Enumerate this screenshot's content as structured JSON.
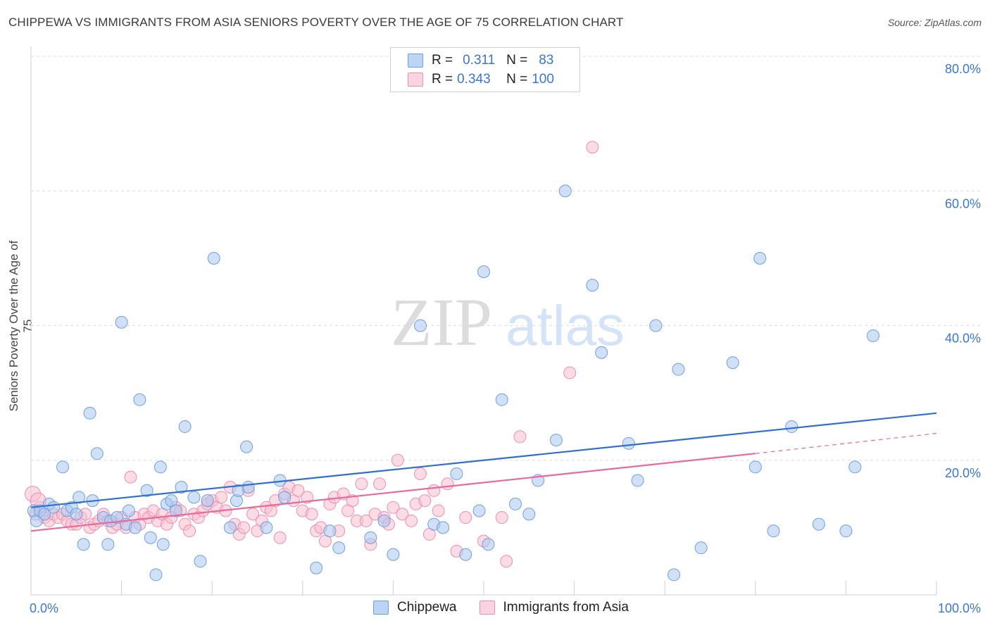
{
  "title": "CHIPPEWA VS IMMIGRANTS FROM ASIA SENIORS POVERTY OVER THE AGE OF 75 CORRELATION CHART",
  "source": "Source: ZipAtlas.com",
  "watermark": {
    "zip": "ZIP",
    "atlas": "atlas"
  },
  "legend": {
    "r_label": "R =",
    "n_label": "N =",
    "rows": [
      {
        "name": "Chippewa",
        "r": "0.311",
        "n": "83"
      },
      {
        "name": "Immigrants from Asia",
        "r": "0.343",
        "n": "100"
      }
    ]
  },
  "colors": {
    "chippewa_fill": "#a9c8f0",
    "chippewa_stroke": "#6f9fdc",
    "chippewa_line": "#2f6fd0",
    "asia_fill": "#f7bfd0",
    "asia_stroke": "#ee8fb0",
    "asia_line": "#e8699a",
    "tick_text": "#3b76d0",
    "grid": "#dedede"
  },
  "chart_data": {
    "type": "scatter",
    "title": "CHIPPEWA VS IMMIGRANTS FROM ASIA SENIORS POVERTY OVER THE AGE OF 75 CORRELATION CHART",
    "xlabel": "",
    "ylabel": "Seniors Poverty Over the Age of 75",
    "xlim": [
      0,
      100
    ],
    "ylim": [
      0,
      80
    ],
    "x_tick_labels": [
      "0.0%",
      "100.0%"
    ],
    "y_ticks": [
      20,
      40,
      60,
      80
    ],
    "y_tick_labels": [
      "20.0%",
      "40.0%",
      "60.0%",
      "80.0%"
    ],
    "grid": true,
    "legend_position": "top-center",
    "series": [
      {
        "name": "Chippewa",
        "trend": {
          "x0": 0,
          "y0": 13.0,
          "x1": 100,
          "y1": 27.0
        },
        "points": [
          [
            0.3,
            12.5
          ],
          [
            0.6,
            11.0
          ],
          [
            1.0,
            12.5
          ],
          [
            1.5,
            12.0
          ],
          [
            2.0,
            13.5
          ],
          [
            2.5,
            13.0
          ],
          [
            3.5,
            19.0
          ],
          [
            4.0,
            12.5
          ],
          [
            4.5,
            13.0
          ],
          [
            5.0,
            12.0
          ],
          [
            5.3,
            14.5
          ],
          [
            5.8,
            7.5
          ],
          [
            6.5,
            27.0
          ],
          [
            6.8,
            14.0
          ],
          [
            7.3,
            21.0
          ],
          [
            8.0,
            11.5
          ],
          [
            8.5,
            7.5
          ],
          [
            8.8,
            11.0
          ],
          [
            9.5,
            11.5
          ],
          [
            10.0,
            40.5
          ],
          [
            10.5,
            10.5
          ],
          [
            10.8,
            12.5
          ],
          [
            11.5,
            10.0
          ],
          [
            12.0,
            29.0
          ],
          [
            12.8,
            15.5
          ],
          [
            13.2,
            8.5
          ],
          [
            13.8,
            3.0
          ],
          [
            14.3,
            19.0
          ],
          [
            14.6,
            7.5
          ],
          [
            15.0,
            13.5
          ],
          [
            15.5,
            14.0
          ],
          [
            16.0,
            12.5
          ],
          [
            16.6,
            16.0
          ],
          [
            17.0,
            25.0
          ],
          [
            18.0,
            14.5
          ],
          [
            18.7,
            5.0
          ],
          [
            19.5,
            14.0
          ],
          [
            20.2,
            50.0
          ],
          [
            22.0,
            10.0
          ],
          [
            22.7,
            14.0
          ],
          [
            22.9,
            15.5
          ],
          [
            23.8,
            22.0
          ],
          [
            24.0,
            16.0
          ],
          [
            26.0,
            10.0
          ],
          [
            27.5,
            17.0
          ],
          [
            28.0,
            14.5
          ],
          [
            31.5,
            4.0
          ],
          [
            33.0,
            9.5
          ],
          [
            34.0,
            7.0
          ],
          [
            37.5,
            8.5
          ],
          [
            39.0,
            11.0
          ],
          [
            40.0,
            6.0
          ],
          [
            43.0,
            40.0
          ],
          [
            44.5,
            10.5
          ],
          [
            45.5,
            10.0
          ],
          [
            47.0,
            18.0
          ],
          [
            48.0,
            6.0
          ],
          [
            49.5,
            12.5
          ],
          [
            50.0,
            48.0
          ],
          [
            50.5,
            7.5
          ],
          [
            52.0,
            29.0
          ],
          [
            53.5,
            13.5
          ],
          [
            55.0,
            12.0
          ],
          [
            56.0,
            17.0
          ],
          [
            58.0,
            23.0
          ],
          [
            59.0,
            60.0
          ],
          [
            62.0,
            46.0
          ],
          [
            63.0,
            36.0
          ],
          [
            66.0,
            22.5
          ],
          [
            67.0,
            17.0
          ],
          [
            69.0,
            40.0
          ],
          [
            71.0,
            3.0
          ],
          [
            71.5,
            33.5
          ],
          [
            74.0,
            7.0
          ],
          [
            77.5,
            34.5
          ],
          [
            80.5,
            50.0
          ],
          [
            80.0,
            19.0
          ],
          [
            82.0,
            9.5
          ],
          [
            84.0,
            25.0
          ],
          [
            87.0,
            10.5
          ],
          [
            90.0,
            9.5
          ],
          [
            91.0,
            19.0
          ],
          [
            93.0,
            38.5
          ]
        ]
      },
      {
        "name": "Immigrants from Asia",
        "trend": {
          "x0": 0,
          "y0": 9.5,
          "x1": 80,
          "y1": 21.0,
          "dash_to_x": 100,
          "dash_to_y": 24.0
        },
        "points": [
          [
            0.2,
            15.0
          ],
          [
            0.5,
            12.0
          ],
          [
            1.0,
            13.0
          ],
          [
            1.5,
            11.5
          ],
          [
            2.0,
            11.0
          ],
          [
            2.5,
            12.0
          ],
          [
            3.0,
            11.5
          ],
          [
            3.5,
            12.0
          ],
          [
            4.0,
            11.0
          ],
          [
            4.5,
            10.5
          ],
          [
            5.0,
            10.5
          ],
          [
            5.5,
            11.5
          ],
          [
            6.0,
            12.0
          ],
          [
            6.5,
            10.0
          ],
          [
            7.0,
            10.5
          ],
          [
            7.5,
            11.0
          ],
          [
            8.0,
            12.0
          ],
          [
            8.5,
            11.0
          ],
          [
            9.0,
            10.0
          ],
          [
            9.5,
            10.5
          ],
          [
            10.0,
            11.5
          ],
          [
            10.5,
            10.0
          ],
          [
            11.0,
            17.5
          ],
          [
            11.5,
            11.5
          ],
          [
            12.0,
            10.5
          ],
          [
            12.5,
            12.0
          ],
          [
            13.0,
            11.5
          ],
          [
            13.5,
            12.5
          ],
          [
            14.0,
            11.0
          ],
          [
            14.5,
            12.0
          ],
          [
            15.0,
            10.5
          ],
          [
            15.5,
            11.5
          ],
          [
            16.0,
            13.0
          ],
          [
            16.5,
            12.5
          ],
          [
            17.0,
            10.5
          ],
          [
            17.5,
            9.5
          ],
          [
            18.0,
            12.0
          ],
          [
            18.5,
            11.5
          ],
          [
            19.0,
            12.5
          ],
          [
            19.5,
            13.5
          ],
          [
            20.0,
            14.0
          ],
          [
            20.5,
            13.0
          ],
          [
            21.0,
            14.5
          ],
          [
            21.5,
            12.5
          ],
          [
            22.0,
            16.0
          ],
          [
            22.5,
            10.5
          ],
          [
            23.0,
            9.0
          ],
          [
            23.5,
            10.0
          ],
          [
            24.0,
            15.5
          ],
          [
            24.5,
            12.0
          ],
          [
            25.0,
            9.5
          ],
          [
            25.5,
            11.0
          ],
          [
            26.0,
            13.0
          ],
          [
            26.5,
            12.5
          ],
          [
            27.0,
            14.0
          ],
          [
            27.5,
            8.5
          ],
          [
            28.0,
            15.0
          ],
          [
            28.5,
            16.0
          ],
          [
            29.0,
            14.0
          ],
          [
            29.5,
            15.5
          ],
          [
            30.0,
            12.5
          ],
          [
            30.5,
            14.5
          ],
          [
            31.0,
            12.0
          ],
          [
            31.5,
            9.5
          ],
          [
            32.0,
            10.0
          ],
          [
            32.5,
            8.0
          ],
          [
            33.0,
            13.5
          ],
          [
            33.5,
            14.5
          ],
          [
            34.0,
            9.5
          ],
          [
            34.5,
            15.0
          ],
          [
            35.0,
            12.5
          ],
          [
            35.5,
            14.0
          ],
          [
            36.0,
            11.0
          ],
          [
            36.5,
            16.5
          ],
          [
            37.0,
            11.0
          ],
          [
            37.5,
            7.5
          ],
          [
            38.0,
            12.0
          ],
          [
            38.5,
            16.5
          ],
          [
            39.0,
            11.5
          ],
          [
            39.5,
            10.5
          ],
          [
            40.0,
            13.0
          ],
          [
            40.5,
            20.0
          ],
          [
            41.0,
            12.0
          ],
          [
            42.0,
            11.0
          ],
          [
            42.5,
            13.5
          ],
          [
            43.0,
            18.0
          ],
          [
            43.5,
            14.0
          ],
          [
            44.0,
            9.0
          ],
          [
            44.5,
            15.5
          ],
          [
            45.0,
            12.5
          ],
          [
            46.0,
            16.5
          ],
          [
            47.0,
            6.5
          ],
          [
            48.0,
            11.5
          ],
          [
            50.0,
            8.0
          ],
          [
            52.0,
            11.5
          ],
          [
            52.5,
            5.0
          ],
          [
            54.0,
            23.5
          ],
          [
            59.5,
            33.0
          ],
          [
            62.0,
            66.5
          ],
          [
            0.8,
            14.0
          ]
        ]
      }
    ]
  }
}
